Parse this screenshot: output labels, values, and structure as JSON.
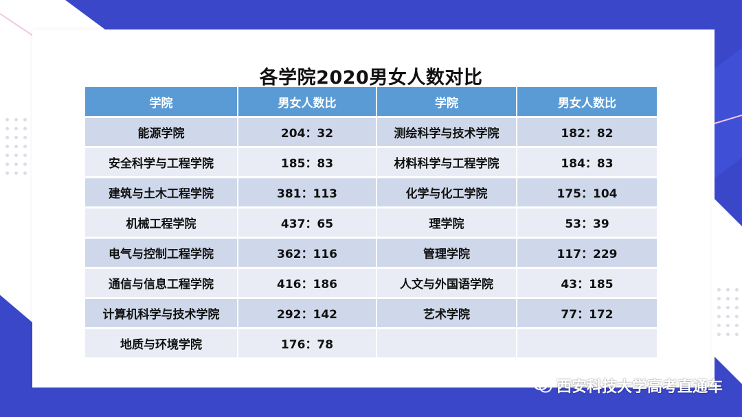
{
  "title": "各学院2020男女人数对比",
  "watermark": "西安科技大学高考直通车",
  "colors": {
    "header": "#5b9bd5",
    "row_odd": "#cfd8ea",
    "row_even": "#e9ecf5",
    "accent": "#3a47c9"
  },
  "headers": [
    "学院",
    "男女人数比",
    "学院",
    "男女人数比"
  ],
  "chart_data": {
    "type": "table",
    "title": "各学院2020男女人数对比",
    "columns": [
      "学院",
      "男女人数比",
      "学院",
      "男女人数比"
    ],
    "rows": [
      {
        "left_college": "能源学院",
        "left_ratio": "204：32",
        "right_college": "测绘科学与技术学院",
        "right_ratio": "182：82"
      },
      {
        "left_college": "安全科学与工程学院",
        "left_ratio": "185：83",
        "right_college": "材料科学与工程学院",
        "right_ratio": "184：83"
      },
      {
        "left_college": "建筑与土木工程学院",
        "left_ratio": "381：113",
        "right_college": "化学与化工学院",
        "right_ratio": "175：104"
      },
      {
        "left_college": "机械工程学院",
        "left_ratio": "437：65",
        "right_college": "理学院",
        "right_ratio": "53：39"
      },
      {
        "left_college": "电气与控制工程学院",
        "left_ratio": "362：116",
        "right_college": "管理学院",
        "right_ratio": "117：229"
      },
      {
        "left_college": "通信与信息工程学院",
        "left_ratio": "416：186",
        "right_college": "人文与外国语学院",
        "right_ratio": "43：185"
      },
      {
        "left_college": "计算机科学与技术学院",
        "left_ratio": "292：142",
        "right_college": "艺术学院",
        "right_ratio": "77：172"
      },
      {
        "left_college": "地质与环境学院",
        "left_ratio": "176：78",
        "right_college": "",
        "right_ratio": ""
      }
    ]
  }
}
